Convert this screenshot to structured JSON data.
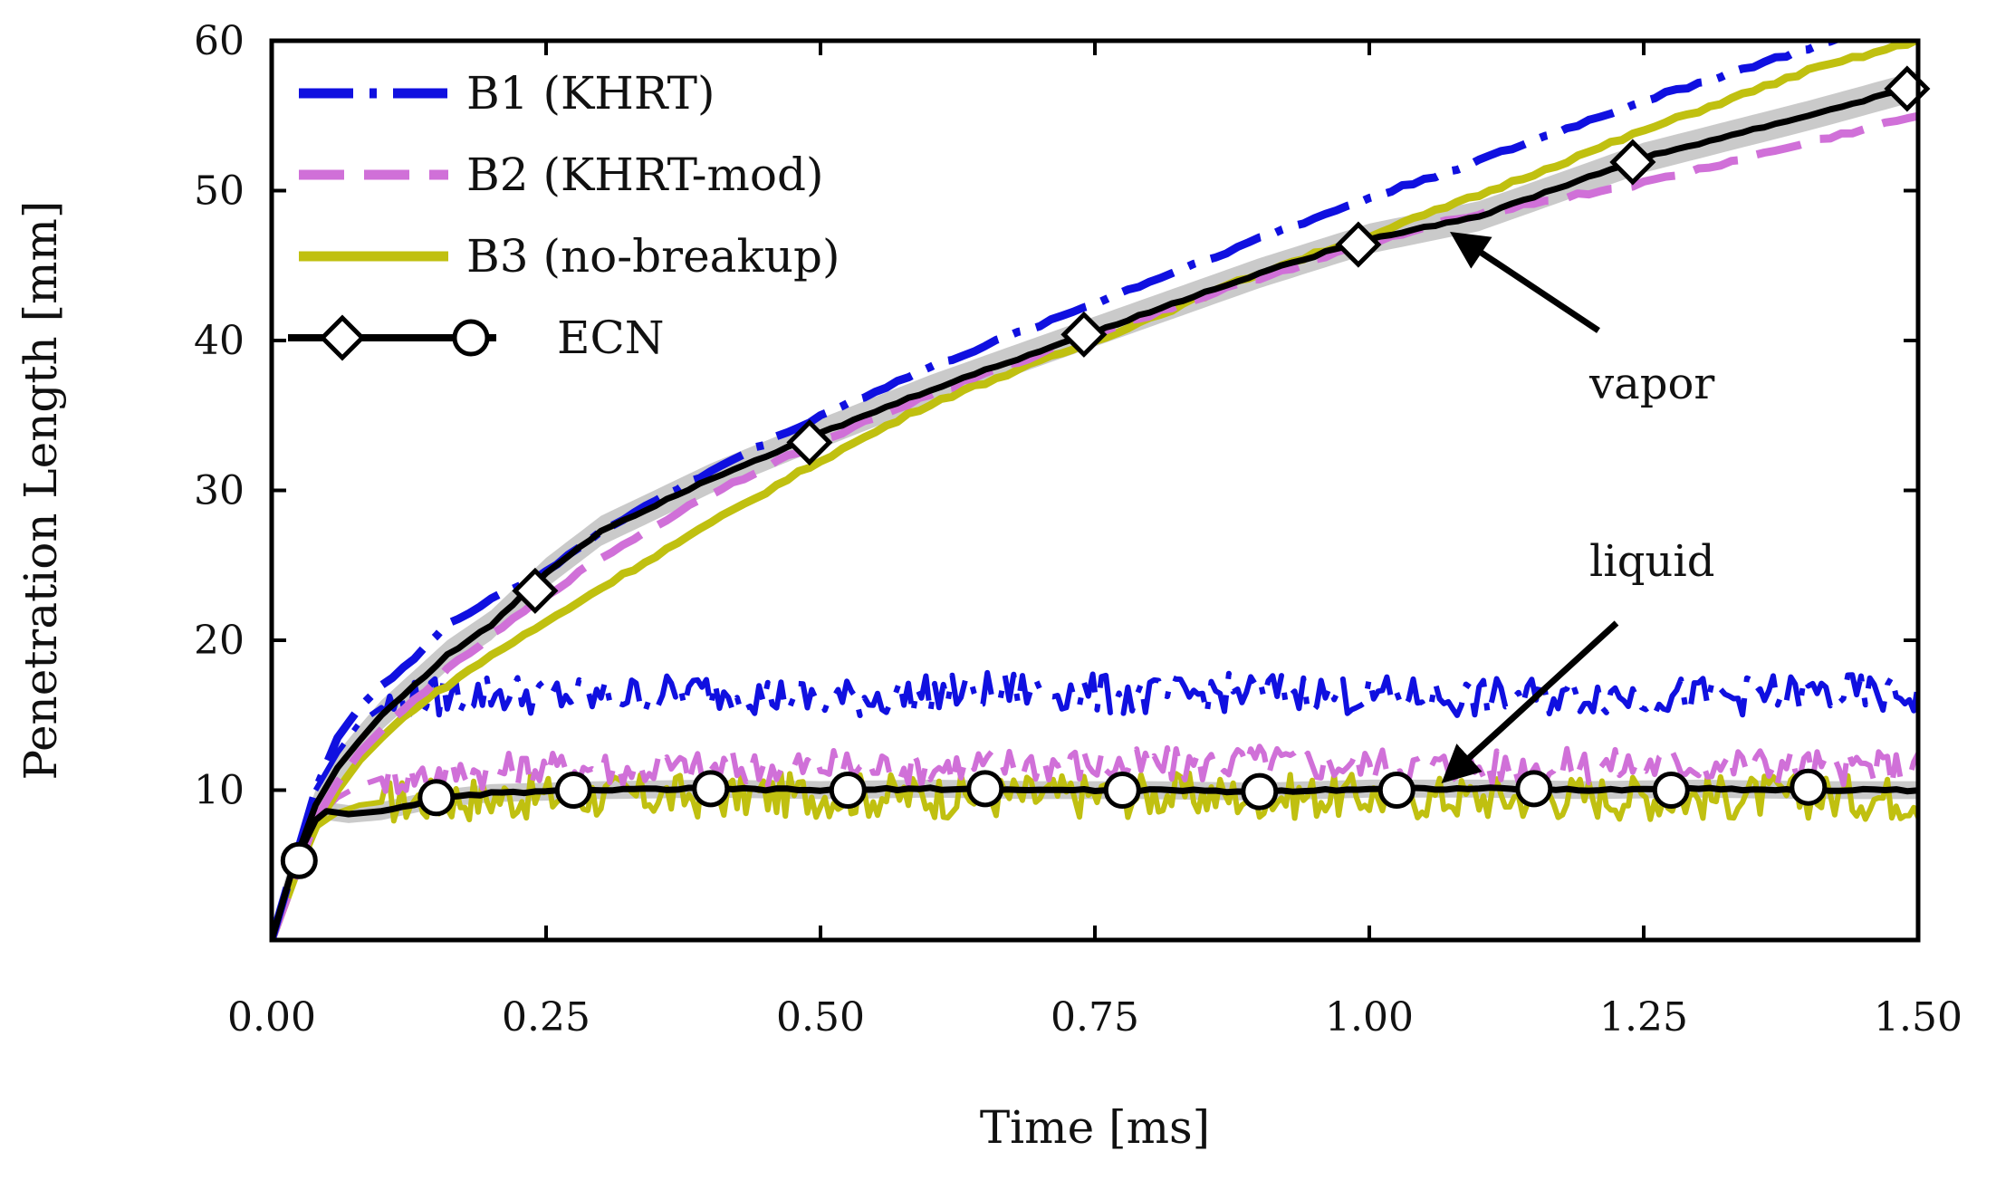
{
  "chart_data": {
    "type": "line",
    "xlabel": "Time [ms]",
    "ylabel": "Penetration Length [mm]",
    "xlim": [
      0,
      1.5
    ],
    "ylim": [
      0,
      60
    ],
    "xticks": [
      "0.00",
      "0.25",
      "0.50",
      "0.75",
      "1.00",
      "1.25",
      "1.50"
    ],
    "yticks": [
      "10",
      "20",
      "30",
      "40",
      "50",
      "60"
    ],
    "grid": false,
    "legend_position": "top-left",
    "legend": [
      {
        "label": "B1 (KHRT)",
        "color": "#1010e0",
        "style": "dash-dot"
      },
      {
        "label": "B2 (KHRT-mod)",
        "color": "#d070d8",
        "style": "dashed"
      },
      {
        "label": "B3 (no-breakup)",
        "color": "#c0c010",
        "style": "solid"
      },
      {
        "label": "ECN",
        "color": "#000000",
        "style": "solid-markers"
      }
    ],
    "annotations": [
      {
        "text": "vapor",
        "points_to": [
          1.07,
          47.5
        ]
      },
      {
        "text": "liquid",
        "points_to": [
          1.06,
          10.5
        ]
      }
    ],
    "series": [
      {
        "key": "b1_vapor",
        "color": "#1010e0",
        "style": "dash-dot",
        "x": [
          0,
          0.02,
          0.04,
          0.06,
          0.08,
          0.1,
          0.13,
          0.16,
          0.2,
          0.25,
          0.3,
          0.4,
          0.5,
          0.6,
          0.75,
          0.9,
          1.0,
          1.1,
          1.25,
          1.4,
          1.5
        ],
        "y": [
          0,
          5,
          10,
          13.5,
          15.5,
          17,
          18.8,
          21,
          22.8,
          24.5,
          27.3,
          31.3,
          35,
          38.2,
          42.5,
          46.8,
          49.5,
          52,
          56,
          59.5,
          61.5
        ]
      },
      {
        "key": "b2_vapor",
        "color": "#d070d8",
        "style": "dashed",
        "x": [
          0,
          0.02,
          0.04,
          0.06,
          0.08,
          0.1,
          0.13,
          0.16,
          0.2,
          0.25,
          0.3,
          0.4,
          0.5,
          0.6,
          0.75,
          0.9,
          1.0,
          1.1,
          1.25,
          1.4,
          1.5
        ],
        "y": [
          0,
          4,
          8,
          10.5,
          12.5,
          14,
          16,
          18,
          20.3,
          23,
          25.5,
          29.8,
          33.3,
          36.4,
          40.5,
          44.2,
          46.5,
          48.5,
          50.5,
          53.2,
          55
        ]
      },
      {
        "key": "b3_vapor",
        "color": "#c0c010",
        "style": "solid",
        "x": [
          0,
          0.02,
          0.04,
          0.06,
          0.08,
          0.1,
          0.13,
          0.16,
          0.2,
          0.25,
          0.3,
          0.4,
          0.5,
          0.6,
          0.75,
          0.9,
          1.0,
          1.1,
          1.25,
          1.4,
          1.5
        ],
        "y": [
          0,
          4,
          7.5,
          10,
          12,
          13.5,
          15.5,
          17,
          19,
          21.2,
          23.5,
          27.8,
          32,
          35.8,
          40,
          44.5,
          47,
          49.7,
          54,
          58,
          60
        ]
      },
      {
        "key": "ecn_vapor",
        "color": "#000000",
        "style": "solid",
        "x": [
          0,
          0.02,
          0.04,
          0.06,
          0.08,
          0.1,
          0.13,
          0.16,
          0.2,
          0.25,
          0.3,
          0.4,
          0.5,
          0.6,
          0.75,
          0.9,
          1.0,
          1.1,
          1.25,
          1.4,
          1.5
        ],
        "y": [
          0,
          5,
          9,
          11.5,
          13.3,
          15,
          17,
          19,
          21,
          24.5,
          27.3,
          30.8,
          33.8,
          36.7,
          40.6,
          44.5,
          46.8,
          48.3,
          52.2,
          55,
          57
        ],
        "markers": "diamond",
        "marker_x": [
          0.24,
          0.49,
          0.74,
          0.99,
          1.24,
          1.49
        ],
        "marker_y": [
          23.3,
          33.2,
          40.4,
          46.4,
          51.9,
          56.8
        ]
      },
      {
        "key": "b1_liquid",
        "color": "#1010e0",
        "style": "dash-dot",
        "x": [
          0.04,
          0.06,
          0.08,
          0.1,
          0.13,
          0.16,
          0.2,
          0.3,
          0.4,
          0.5,
          0.6,
          0.7,
          0.8,
          0.9,
          1.0,
          1.1,
          1.2,
          1.3,
          1.4,
          1.5
        ],
        "y": [
          10,
          12.5,
          14.5,
          15.5,
          16,
          16.3,
          16.5,
          16.2,
          16.6,
          16,
          16.4,
          16.7,
          16.2,
          16.6,
          16.3,
          16.1,
          16.4,
          16.2,
          16.5,
          16.3
        ]
      },
      {
        "key": "b2_liquid",
        "color": "#d070d8",
        "style": "dashed",
        "x": [
          0.04,
          0.06,
          0.08,
          0.1,
          0.13,
          0.16,
          0.2,
          0.3,
          0.4,
          0.5,
          0.6,
          0.7,
          0.8,
          0.9,
          1.0,
          1.1,
          1.2,
          1.3,
          1.4,
          1.5
        ],
        "y": [
          8,
          9.5,
          10.3,
          10.8,
          11,
          11.2,
          11.3,
          11.5,
          11.4,
          11.6,
          11.5,
          11.8,
          11.6,
          11.9,
          11.7,
          11.5,
          11.6,
          11.8,
          11.6,
          11.4
        ]
      },
      {
        "key": "b3_liquid",
        "color": "#c0c010",
        "style": "solid",
        "x": [
          0.04,
          0.06,
          0.08,
          0.1,
          0.13,
          0.16,
          0.2,
          0.3,
          0.4,
          0.5,
          0.6,
          0.7,
          0.8,
          0.9,
          1.0,
          1.1,
          1.2,
          1.3,
          1.4,
          1.5
        ],
        "y": [
          7.5,
          8.5,
          9,
          9.2,
          9.3,
          9.4,
          9.5,
          9.6,
          9.6,
          9.7,
          9.6,
          9.6,
          9.7,
          9.6,
          9.6,
          9.5,
          9.6,
          9.5,
          9.6,
          9.5
        ]
      },
      {
        "key": "ecn_liquid",
        "color": "#000000",
        "style": "solid",
        "x": [
          0,
          0.02,
          0.04,
          0.05,
          0.07,
          0.1,
          0.15,
          0.2,
          0.3,
          0.4,
          0.5,
          0.6,
          0.7,
          0.8,
          0.9,
          1.0,
          1.1,
          1.2,
          1.3,
          1.4,
          1.5
        ],
        "y": [
          0,
          5,
          8,
          8.6,
          8.4,
          8.6,
          9.4,
          9.8,
          10,
          10.1,
          10,
          10.1,
          10,
          10,
          9.9,
          10.1,
          10.1,
          10,
          10.1,
          10,
          10
        ],
        "markers": "circle",
        "marker_x": [
          0.025,
          0.15,
          0.275,
          0.4,
          0.525,
          0.65,
          0.775,
          0.9,
          1.025,
          1.15,
          1.275,
          1.4
        ],
        "marker_y": [
          5.3,
          9.5,
          10,
          10.1,
          10,
          10.1,
          10,
          9.9,
          10,
          10.1,
          10,
          10.2
        ]
      }
    ]
  }
}
